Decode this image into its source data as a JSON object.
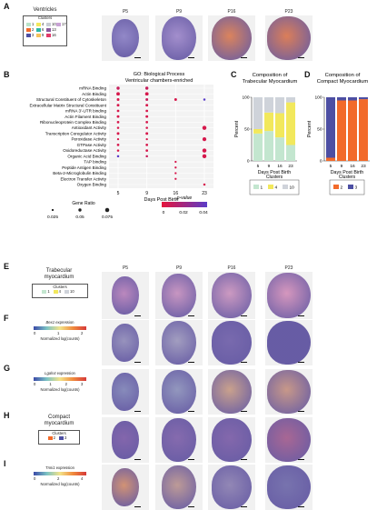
{
  "panels": {
    "A": {
      "label": "A",
      "legend_title": "Ventricles",
      "legend_subtitle": "Clusters",
      "clusters": [
        {
          "id": "1",
          "color": "#b9e3c9"
        },
        {
          "id": "2",
          "color": "#f26a2a"
        },
        {
          "id": "3",
          "color": "#4d4fa3"
        },
        {
          "id": "4",
          "color": "#f2e85c"
        },
        {
          "id": "6",
          "color": "#2bb8a5"
        },
        {
          "id": "9",
          "color": "#f6c25c"
        },
        {
          "id": "10",
          "color": "#c8ccd4"
        },
        {
          "id": "13",
          "color": "#8a5a9e"
        },
        {
          "id": "16",
          "color": "#e23a6a"
        },
        {
          "id": "17",
          "color": "#c9a3d6"
        }
      ],
      "timepoints": [
        "P5",
        "P9",
        "P16",
        "P23"
      ]
    },
    "B": {
      "label": "B",
      "title_line1": "GO: Biological Process",
      "title_line2": "Ventricular chambers-enriched",
      "xlabel": "Days Post Birth",
      "size_legend_title": "Gene Ratio",
      "size_legend_values": [
        "0.025",
        "0.05",
        "0.075"
      ],
      "color_legend_title": "p-value",
      "color_legend_ticks": [
        "0",
        "0.02",
        "0.04"
      ]
    },
    "C": {
      "label": "C",
      "title_line1": "Composition of",
      "title_line2": "Trabecular Myocardium",
      "ylabel": "Percent",
      "xlabel": "Days Post Birth",
      "legend_title": "Clusters",
      "legend": [
        {
          "id": "1",
          "color": "#c3e6cf"
        },
        {
          "id": "4",
          "color": "#f2e85c"
        },
        {
          "id": "10",
          "color": "#cfd3da"
        }
      ]
    },
    "D": {
      "label": "D",
      "title_line1": "Composition of",
      "title_line2": "Compact Myocardium",
      "ylabel": "Percent",
      "xlabel": "Days Post Birth",
      "legend_title": "Clusters",
      "legend": [
        {
          "id": "2",
          "color": "#f26a2a"
        },
        {
          "id": "3",
          "color": "#4d4fa3"
        }
      ]
    },
    "E": {
      "label": "E",
      "legend_title_line1": "Trabecular",
      "legend_title_line2": "myocardium",
      "legend_subtitle": "Clusters",
      "legend": [
        {
          "id": "1",
          "color": "#c3e6cf"
        },
        {
          "id": "4",
          "color": "#f2e85c"
        },
        {
          "id": "10",
          "color": "#cfd3da"
        }
      ],
      "timepoints": [
        "P5",
        "P9",
        "P16",
        "P23"
      ]
    },
    "F": {
      "label": "F",
      "gene": "Bex1",
      "expr_suffix": " expression",
      "ticks": [
        "0",
        "1",
        "2"
      ],
      "axis_label": "Normalized log(counts)"
    },
    "G": {
      "label": "G",
      "gene": "Lgals4",
      "expr_suffix": " expression",
      "ticks": [
        "0",
        "1",
        "2",
        "3"
      ],
      "axis_label": "Normalized log(counts)"
    },
    "H": {
      "label": "H",
      "legend_title_line1": "Compact",
      "legend_title_line2": "myocardium",
      "legend_subtitle": "Clusters",
      "legend": [
        {
          "id": "2",
          "color": "#f26a2a"
        },
        {
          "id": "3",
          "color": "#4d4fa3"
        }
      ]
    },
    "I": {
      "label": "I",
      "gene": "Tnni1",
      "expr_suffix": " expression",
      "ticks": [
        "0",
        "2",
        "4"
      ],
      "axis_label": "Normalized log(counts)"
    }
  },
  "chart_data": [
    {
      "type": "scatter",
      "panel": "B",
      "title": "GO: Biological Process Ventricular chambers-enriched",
      "xlabel": "Days Post Birth",
      "x": [
        5,
        9,
        16,
        23
      ],
      "terms": [
        "mRNA Binding",
        "Actin Binding",
        "Structural Constituent of Cytoskeleton",
        "Extracellular Matrix Structural Constituent",
        "mRNA 3'-UTR binding",
        "Actin Filament Binding",
        "Ribonucleoprotein Complex Binding",
        "Antioxidant Activity",
        "Transcription Coregulator Activity",
        "Peroxidase Activity",
        "GTPase Activity",
        "Oxidoreductase Activity",
        "Organic Acid Binding",
        "TAP binding",
        "Peptide Antigen Binding",
        "Beta-2-Microglobulin Binding",
        "Electron Transfer Activity",
        "Oxygen Binding"
      ],
      "points": [
        {
          "term": "mRNA Binding",
          "x": 5,
          "ratio": 0.05,
          "p": 0.01
        },
        {
          "term": "mRNA Binding",
          "x": 9,
          "ratio": 0.05,
          "p": 0.01
        },
        {
          "term": "Actin Binding",
          "x": 5,
          "ratio": 0.06,
          "p": 0.005
        },
        {
          "term": "Actin Binding",
          "x": 9,
          "ratio": 0.06,
          "p": 0.005
        },
        {
          "term": "Structural Constituent of Cytoskeleton",
          "x": 5,
          "ratio": 0.04,
          "p": 0.005
        },
        {
          "term": "Structural Constituent of Cytoskeleton",
          "x": 9,
          "ratio": 0.04,
          "p": 0.01
        },
        {
          "term": "Structural Constituent of Cytoskeleton",
          "x": 16,
          "ratio": 0.04,
          "p": 0.005
        },
        {
          "term": "Structural Constituent of Cytoskeleton",
          "x": 23,
          "ratio": 0.03,
          "p": 0.045
        },
        {
          "term": "Extracellular Matrix Structural Constituent",
          "x": 5,
          "ratio": 0.04,
          "p": 0.005
        },
        {
          "term": "Extracellular Matrix Structural Constituent",
          "x": 9,
          "ratio": 0.04,
          "p": 0.005
        },
        {
          "term": "mRNA 3'-UTR binding",
          "x": 5,
          "ratio": 0.035,
          "p": 0.005
        },
        {
          "term": "mRNA 3'-UTR binding",
          "x": 9,
          "ratio": 0.035,
          "p": 0.005
        },
        {
          "term": "Actin Filament Binding",
          "x": 5,
          "ratio": 0.04,
          "p": 0.005
        },
        {
          "term": "Actin Filament Binding",
          "x": 9,
          "ratio": 0.04,
          "p": 0.005
        },
        {
          "term": "Ribonucleoprotein Complex Binding",
          "x": 5,
          "ratio": 0.035,
          "p": 0.005
        },
        {
          "term": "Ribonucleoprotein Complex Binding",
          "x": 9,
          "ratio": 0.035,
          "p": 0.005
        },
        {
          "term": "Antioxidant Activity",
          "x": 5,
          "ratio": 0.03,
          "p": 0.005
        },
        {
          "term": "Antioxidant Activity",
          "x": 9,
          "ratio": 0.03,
          "p": 0.005
        },
        {
          "term": "Antioxidant Activity",
          "x": 23,
          "ratio": 0.075,
          "p": 0.005
        },
        {
          "term": "Transcription Coregulator Activity",
          "x": 5,
          "ratio": 0.04,
          "p": 0.005
        },
        {
          "term": "Transcription Coregulator Activity",
          "x": 9,
          "ratio": 0.04,
          "p": 0.005
        },
        {
          "term": "Peroxidase Activity",
          "x": 5,
          "ratio": 0.025,
          "p": 0.005
        },
        {
          "term": "Peroxidase Activity",
          "x": 9,
          "ratio": 0.025,
          "p": 0.005
        },
        {
          "term": "Peroxidase Activity",
          "x": 23,
          "ratio": 0.07,
          "p": 0.005
        },
        {
          "term": "GTPase Activity",
          "x": 5,
          "ratio": 0.035,
          "p": 0.005
        },
        {
          "term": "GTPase Activity",
          "x": 9,
          "ratio": 0.035,
          "p": 0.005
        },
        {
          "term": "Oxidoreductase Activity",
          "x": 5,
          "ratio": 0.03,
          "p": 0.005
        },
        {
          "term": "Oxidoreductase Activity",
          "x": 9,
          "ratio": 0.035,
          "p": 0.005
        },
        {
          "term": "Oxidoreductase Activity",
          "x": 23,
          "ratio": 0.075,
          "p": 0.005
        },
        {
          "term": "Organic Acid Binding",
          "x": 5,
          "ratio": 0.03,
          "p": 0.045
        },
        {
          "term": "Organic Acid Binding",
          "x": 9,
          "ratio": 0.03,
          "p": 0.01
        },
        {
          "term": "Organic Acid Binding",
          "x": 23,
          "ratio": 0.075,
          "p": 0.005
        },
        {
          "term": "TAP binding",
          "x": 16,
          "ratio": 0.025,
          "p": 0.005
        },
        {
          "term": "Peptide Antigen Binding",
          "x": 16,
          "ratio": 0.025,
          "p": 0.005
        },
        {
          "term": "Beta-2-Microglobulin Binding",
          "x": 16,
          "ratio": 0.025,
          "p": 0.005
        },
        {
          "term": "Electron Transfer Activity",
          "x": 16,
          "ratio": 0.025,
          "p": 0.005
        },
        {
          "term": "Oxygen Binding",
          "x": 23,
          "ratio": 0.03,
          "p": 0.005
        }
      ]
    },
    {
      "type": "bar",
      "panel": "C",
      "title": "Composition of Trabecular Myocardium",
      "xlabel": "Days Post Birth",
      "ylabel": "Percent",
      "categories": [
        "5",
        "9",
        "16",
        "23"
      ],
      "ylim": [
        0,
        100
      ],
      "yticks": [
        0,
        50,
        100
      ],
      "series": [
        {
          "name": "1",
          "values": [
            43,
            47,
            37,
            25
          ]
        },
        {
          "name": "4",
          "values": [
            7,
            29,
            38,
            67
          ]
        },
        {
          "name": "10",
          "values": [
            50,
            24,
            25,
            8
          ]
        }
      ]
    },
    {
      "type": "bar",
      "panel": "D",
      "title": "Composition of Compact Myocardium",
      "xlabel": "Days Post Birth",
      "ylabel": "Percent",
      "categories": [
        "5",
        "9",
        "16",
        "23"
      ],
      "ylim": [
        0,
        100
      ],
      "yticks": [
        0,
        50,
        100
      ],
      "series": [
        {
          "name": "2",
          "values": [
            5,
            95,
            95,
            97
          ]
        },
        {
          "name": "3",
          "values": [
            95,
            5,
            5,
            3
          ]
        }
      ]
    }
  ]
}
